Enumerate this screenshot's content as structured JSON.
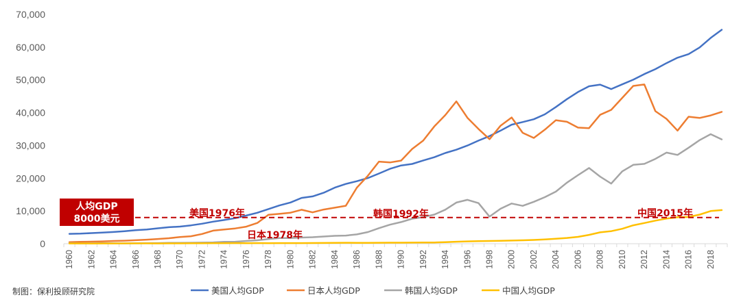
{
  "chart_data": {
    "type": "line",
    "title": "",
    "xlabel": "",
    "ylabel": "",
    "ylim": [
      0,
      70000
    ],
    "y_ticks": [
      "0",
      "10,000",
      "20,000",
      "30,000",
      "40,000",
      "50,000",
      "60,000",
      "70,000"
    ],
    "x": [
      1960,
      1961,
      1962,
      1963,
      1964,
      1965,
      1966,
      1967,
      1968,
      1969,
      1970,
      1971,
      1972,
      1973,
      1974,
      1975,
      1976,
      1977,
      1978,
      1979,
      1980,
      1981,
      1982,
      1983,
      1984,
      1985,
      1986,
      1987,
      1988,
      1989,
      1990,
      1991,
      1992,
      1993,
      1994,
      1995,
      1996,
      1997,
      1998,
      1999,
      2000,
      2001,
      2002,
      2003,
      2004,
      2005,
      2006,
      2007,
      2008,
      2009,
      2010,
      2011,
      2012,
      2013,
      2014,
      2015,
      2016,
      2017,
      2018,
      2019
    ],
    "x_tick_labels": [
      "1960",
      "1962",
      "1964",
      "1966",
      "1968",
      "1970",
      "1972",
      "1974",
      "1976",
      "1978",
      "1980",
      "1982",
      "1984",
      "1986",
      "1988",
      "1990",
      "1992",
      "1994",
      "1996",
      "1998",
      "2000",
      "2002",
      "2004",
      "2006",
      "2008",
      "2010",
      "2012",
      "2014",
      "2016",
      "2018"
    ],
    "series": [
      {
        "name": "美国人均GDP",
        "color": "#4472c4",
        "values": [
          3007,
          3067,
          3244,
          3375,
          3574,
          3828,
          4146,
          4336,
          4696,
          5032,
          5234,
          5609,
          6094,
          6726,
          7226,
          7801,
          8592,
          9453,
          10565,
          11674,
          12575,
          13976,
          14434,
          15544,
          17121,
          18237,
          19071,
          20039,
          21417,
          22857,
          23889,
          24342,
          25419,
          26387,
          27695,
          28691,
          29968,
          31459,
          32854,
          34515,
          36330,
          37134,
          37998,
          39490,
          41725,
          44123,
          46302,
          48050,
          48570,
          47195,
          48651,
          50066,
          51784,
          53291,
          55124,
          56763,
          57867,
          59915,
          62805,
          65298
        ]
      },
      {
        "name": "日本人均GDP",
        "color": "#ed7d31",
        "values": [
          479,
          564,
          633,
          718,
          836,
          920,
          1059,
          1229,
          1450,
          1669,
          2037,
          2272,
          2967,
          3997,
          4354,
          4659,
          5198,
          6335,
          8821,
          9105,
          9463,
          10361,
          9578,
          10425,
          10984,
          11585,
          17112,
          20745,
          25052,
          24813,
          25371,
          28925,
          31465,
          35766,
          39268,
          43440,
          38437,
          35022,
          31903,
          36027,
          38532,
          33846,
          32289,
          34808,
          37689,
          37218,
          35434,
          35275,
          39339,
          40855,
          44508,
          48168,
          48603,
          40454,
          38109,
          34524,
          38761,
          38387,
          39159,
          40247
        ]
      },
      {
        "name": "韩国人均GDP",
        "color": "#a5a5a5",
        "values": [
          158,
          94,
          106,
          146,
          124,
          109,
          134,
          161,
          198,
          243,
          279,
          301,
          324,
          406,
          563,
          615,
          830,
          1055,
          1406,
          1710,
          1715,
          1883,
          1993,
          2199,
          2413,
          2482,
          2835,
          3555,
          4749,
          5817,
          6610,
          7637,
          8127,
          8885,
          10385,
          12565,
          13403,
          12398,
          8282,
          10672,
          12257,
          11561,
          12789,
          14209,
          15908,
          18640,
          20917,
          23101,
          20475,
          18339,
          22087,
          24080,
          24359,
          25891,
          27811,
          27105,
          29289,
          31617,
          33423,
          31846
        ]
      },
      {
        "name": "中国人均GDP",
        "color": "#ffc000",
        "values": [
          90,
          76,
          70,
          74,
          85,
          98,
          104,
          97,
          91,
          100,
          113,
          119,
          132,
          157,
          160,
          178,
          165,
          185,
          156,
          183,
          195,
          197,
          203,
          225,
          251,
          294,
          282,
          252,
          284,
          311,
          318,
          333,
          366,
          377,
          473,
          610,
          709,
          782,
          829,
          873,
          959,
          1053,
          1149,
          1289,
          1509,
          1753,
          2099,
          2694,
          3468,
          3832,
          4550,
          5618,
          6317,
          7051,
          7679,
          8066,
          8148,
          8879,
          9977,
          10262
        ]
      }
    ],
    "reference_line": {
      "value": 8000,
      "style": "dashed",
      "color": "#c00000"
    },
    "annotations": {
      "box_line1": "人均GDP",
      "box_line2": "8000美元",
      "us": "美国1976年",
      "jp": "日本1978年",
      "kr": "韩国1992年",
      "cn": "中国2015年"
    },
    "legend_position": "bottom-center"
  },
  "footer": {
    "source": "制图：保利投顾研究院"
  }
}
